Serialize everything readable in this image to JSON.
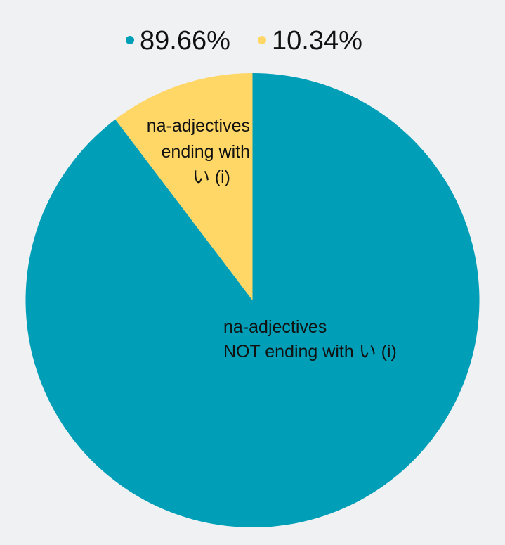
{
  "chart_data": {
    "type": "pie",
    "categories": [
      "na-adjectives NOT ending with い (i)",
      "na-adjectives ending with い (i)"
    ],
    "values": [
      89.66,
      10.34
    ],
    "colors": [
      "#009fb7",
      "#fed766"
    ],
    "legend": [
      "89.66%",
      "10.34%"
    ],
    "legend_position": "top",
    "slice_labels": [
      [
        "na-adjectives",
        "NOT ending with い (i)"
      ],
      [
        "na-adjectives",
        "ending with",
        "い (i)"
      ]
    ]
  }
}
